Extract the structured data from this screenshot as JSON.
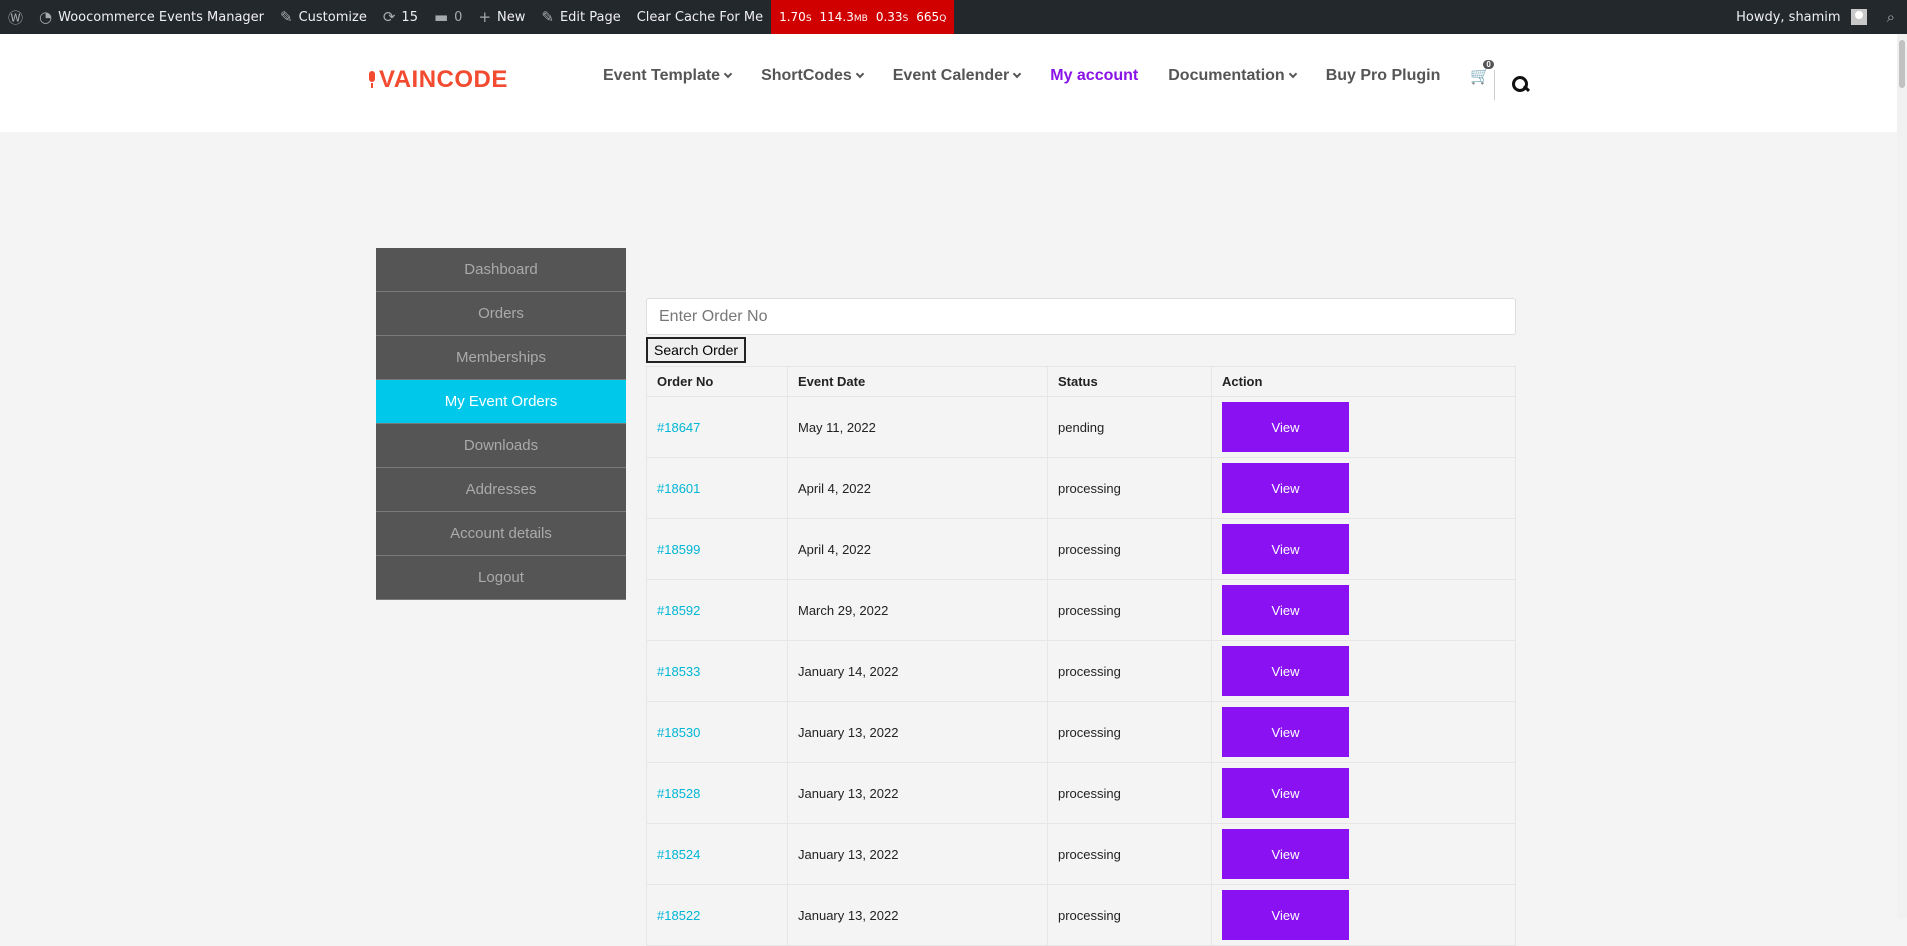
{
  "adminbar": {
    "site_name": "Woocommerce Events Manager",
    "customize": "Customize",
    "updates": "15",
    "comments": "0",
    "new": "New",
    "edit_page": "Edit Page",
    "clear_cache": "Clear Cache For Me",
    "perf": {
      "time": "1.70",
      "time_unit": "S",
      "mem": "114.3",
      "mem_unit": "MB",
      "query_time": "0.33",
      "query_time_unit": "S",
      "queries": "665",
      "queries_unit": "Q"
    },
    "howdy": "Howdy, shamim"
  },
  "header": {
    "logo": "VAINCODE",
    "nav": [
      {
        "label": "Event Template",
        "dropdown": true
      },
      {
        "label": "ShortCodes",
        "dropdown": true
      },
      {
        "label": "Event Calender",
        "dropdown": true
      },
      {
        "label": "My account",
        "dropdown": false,
        "active": true
      },
      {
        "label": "Documentation",
        "dropdown": true
      },
      {
        "label": "Buy Pro Plugin",
        "dropdown": false
      }
    ],
    "cart_count": "0"
  },
  "sidebar": {
    "items": [
      {
        "label": "Dashboard"
      },
      {
        "label": "Orders"
      },
      {
        "label": "Memberships"
      },
      {
        "label": "My Event Orders",
        "active": true
      },
      {
        "label": "Downloads"
      },
      {
        "label": "Addresses"
      },
      {
        "label": "Account details"
      },
      {
        "label": "Logout"
      }
    ]
  },
  "search": {
    "placeholder": "Enter Order No",
    "button": "Search Order"
  },
  "table": {
    "headers": [
      "Order No",
      "Event Date",
      "Status",
      "Action"
    ],
    "rows": [
      {
        "order": "#18647",
        "date": "May 11, 2022",
        "status": "pending",
        "action": "View"
      },
      {
        "order": "#18601",
        "date": "April 4, 2022",
        "status": "processing",
        "action": "View"
      },
      {
        "order": "#18599",
        "date": "April 4, 2022",
        "status": "processing",
        "action": "View"
      },
      {
        "order": "#18592",
        "date": "March 29, 2022",
        "status": "processing",
        "action": "View"
      },
      {
        "order": "#18533",
        "date": "January 14, 2022",
        "status": "processing",
        "action": "View"
      },
      {
        "order": "#18530",
        "date": "January 13, 2022",
        "status": "processing",
        "action": "View"
      },
      {
        "order": "#18528",
        "date": "January 13, 2022",
        "status": "processing",
        "action": "View"
      },
      {
        "order": "#18524",
        "date": "January 13, 2022",
        "status": "processing",
        "action": "View"
      },
      {
        "order": "#18522",
        "date": "January 13, 2022",
        "status": "processing",
        "action": "View"
      }
    ]
  },
  "colors": {
    "accent": "#8a12f2",
    "active_tab": "#00c8ea",
    "brand": "#f24b30",
    "link": "#00b6d4"
  }
}
